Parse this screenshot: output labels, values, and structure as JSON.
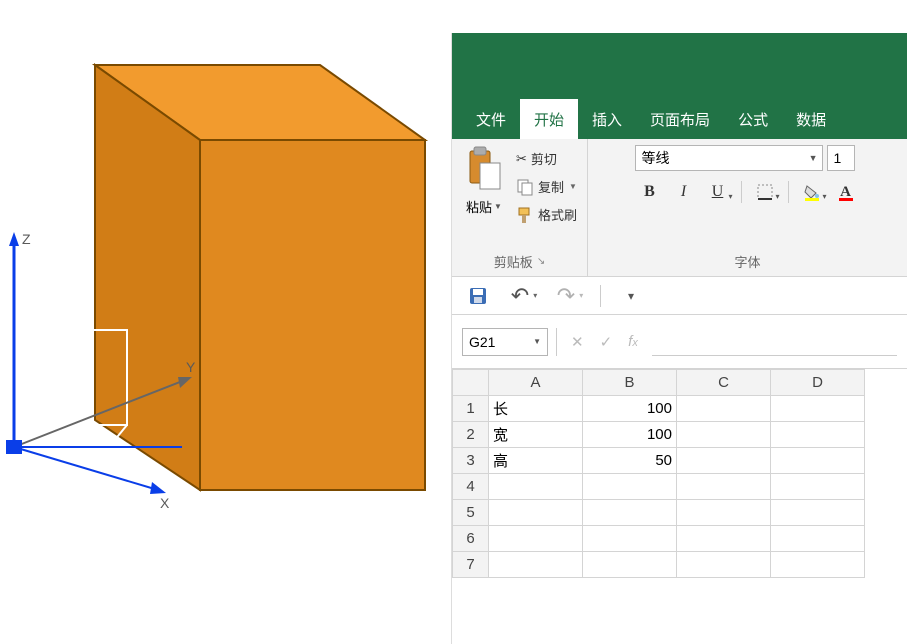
{
  "cube": {
    "top_color": "#f29b2e",
    "front_color": "#e0891f",
    "side_color": "#d17d16",
    "edge_color": "#7a4a00",
    "axis_color": "#ffffff",
    "axis_marker_color": "#0a3ee8",
    "axes": {
      "x": "X",
      "y": "Y",
      "z": "Z"
    }
  },
  "excel": {
    "tabs": [
      "文件",
      "开始",
      "插入",
      "页面布局",
      "公式",
      "数据"
    ],
    "active_tab_index": 1,
    "clipboard": {
      "paste": "粘贴",
      "cut": "剪切",
      "copy": "复制",
      "format_painter": "格式刷",
      "group_label": "剪贴板"
    },
    "font": {
      "name": "等线",
      "size": "1",
      "group_label": "字体"
    },
    "namebox": "G21",
    "columns": [
      "A",
      "B",
      "C",
      "D"
    ],
    "row_count": 7,
    "data": {
      "A1": "长",
      "B1": "100",
      "A2": "宽",
      "B2": "100",
      "A3": "高",
      "B3": "50"
    },
    "colors": {
      "ribbon_green": "#217346",
      "grid_border": "#d4d4d4",
      "header_bg": "#f3f3f3"
    }
  }
}
